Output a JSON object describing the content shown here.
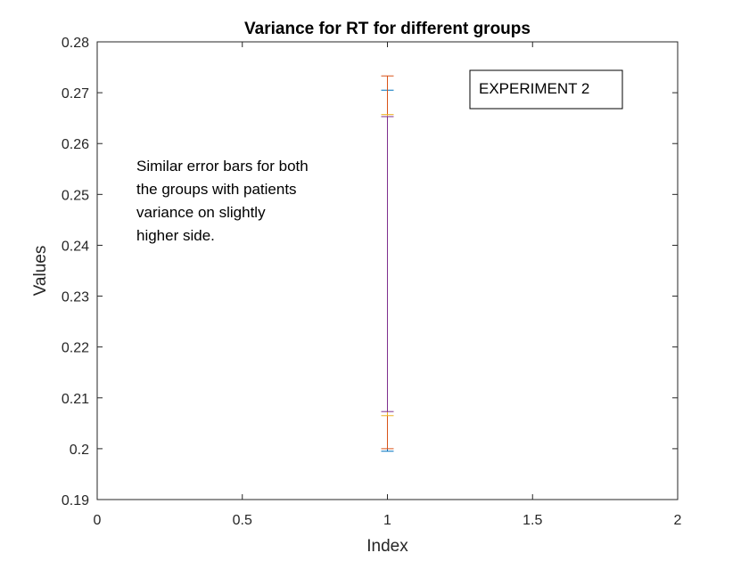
{
  "chart_data": {
    "type": "errorbar",
    "title": "Variance for RT for different groups",
    "xlabel": "Index",
    "ylabel": "Values",
    "xlim": [
      0,
      2
    ],
    "ylim": [
      0.19,
      0.28
    ],
    "xticks": [
      0,
      0.5,
      1,
      1.5,
      2
    ],
    "xtick_labels": [
      "0",
      "0.5",
      "1",
      "1.5",
      "2"
    ],
    "yticks": [
      0.19,
      0.2,
      0.21,
      0.22,
      0.23,
      0.24,
      0.25,
      0.26,
      0.27,
      0.28
    ],
    "ytick_labels": [
      "0.19",
      "0.2",
      "0.21",
      "0.22",
      "0.23",
      "0.24",
      "0.25",
      "0.26",
      "0.27",
      "0.28"
    ],
    "grid": false,
    "series": [
      {
        "x": 1,
        "lower": 0.1995,
        "upper": 0.2705,
        "color": "#0072BD"
      },
      {
        "x": 1,
        "lower": 0.2,
        "upper": 0.2733,
        "color": "#D95319"
      },
      {
        "x": 1,
        "lower": 0.2065,
        "upper": 0.2657,
        "color": "#EDB120"
      },
      {
        "x": 1,
        "lower": 0.2073,
        "upper": 0.2653,
        "color": "#7E2F8E"
      }
    ],
    "annotations": {
      "note_lines": [
        "Similar error bars for both",
        "the groups with patients",
        "variance on slightly",
        "higher side."
      ],
      "box_label": "EXPERIMENT 2"
    }
  }
}
